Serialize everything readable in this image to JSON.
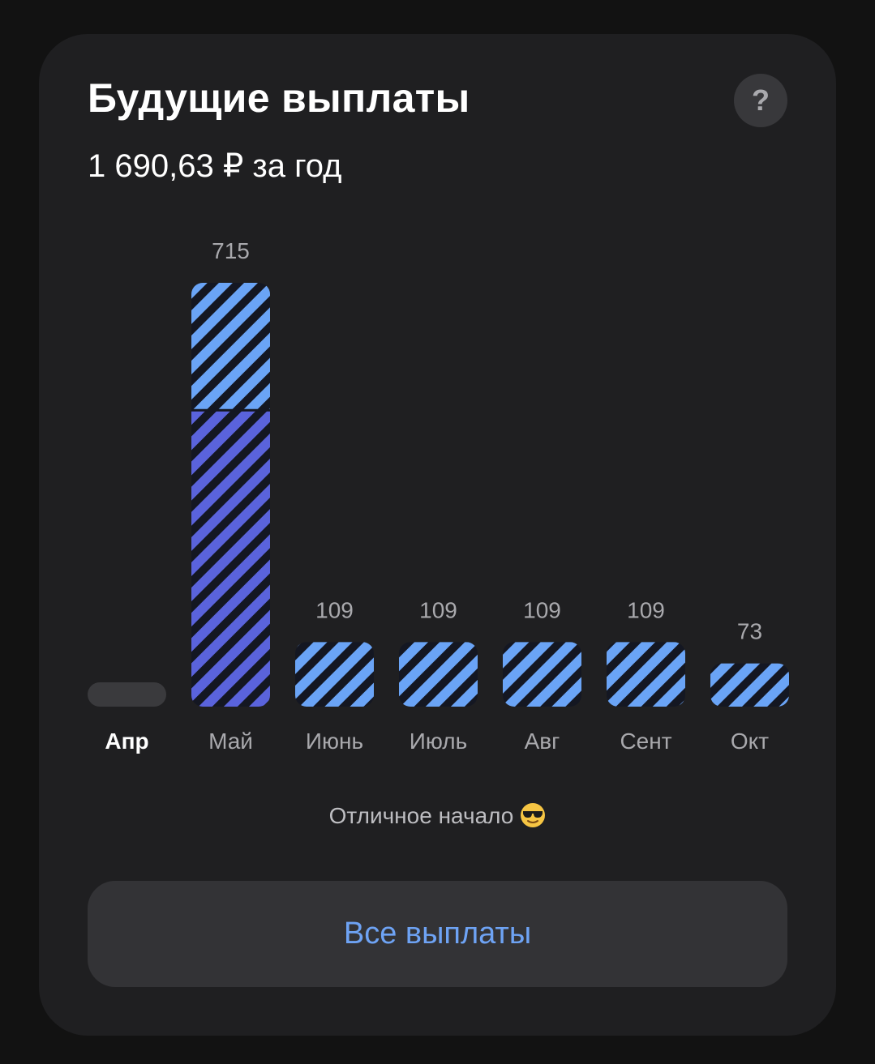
{
  "header": {
    "title": "Будущие выплаты",
    "total": "1 690,63 ₽ за год",
    "help_label": "?"
  },
  "chart_data": {
    "type": "bar",
    "categories": [
      "Апр",
      "Май",
      "Июнь",
      "Июль",
      "Авг",
      "Сент",
      "Окт"
    ],
    "values": [
      0,
      715,
      109,
      109,
      109,
      109,
      73
    ],
    "value_labels": [
      "",
      "715",
      "109",
      "109",
      "109",
      "109",
      "73"
    ],
    "stack_received": [
      0,
      500,
      0,
      0,
      0,
      0,
      0
    ],
    "active_category": "Апр",
    "colors": {
      "stripe_light": "#6aa4f6",
      "stripe_purple": "#5a63dc",
      "stripe_gap": "#141722",
      "empty_bar": "#3a3a3d",
      "label": "#a9a9ad",
      "label_active": "#ffffff"
    }
  },
  "footer": {
    "note": "Отличное начало",
    "note_emoji": "sunglasses-emoji",
    "button_label": "Все выплаты"
  }
}
